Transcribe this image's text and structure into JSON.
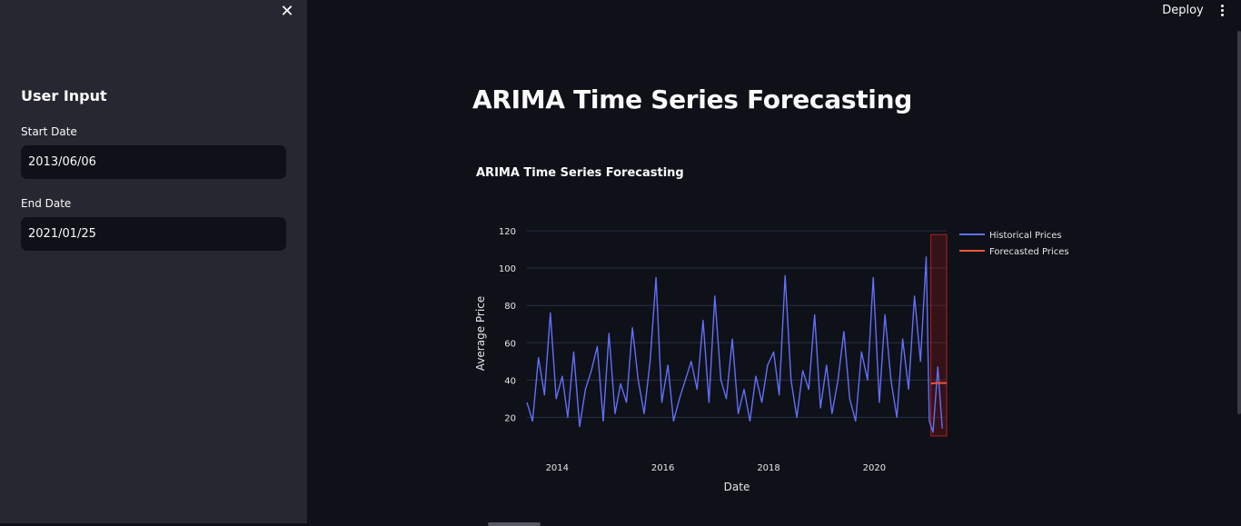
{
  "sidebar": {
    "close_icon": "close-icon",
    "title": "User Input",
    "start_date": {
      "label": "Start Date",
      "value": "2013/06/06"
    },
    "end_date": {
      "label": "End Date",
      "value": "2021/01/25"
    }
  },
  "header": {
    "deploy_label": "Deploy",
    "menu_icon": "kebab-menu-icon"
  },
  "main": {
    "title": "ARIMA Time Series Forecasting"
  },
  "colors": {
    "background": "#0e1117",
    "sidebar": "#262730",
    "historical": "#636efa",
    "forecast": "#ef553b",
    "forecast_region": "#8b1a1a"
  },
  "chart_data": {
    "type": "line",
    "title": "ARIMA Time Series Forecasting",
    "xlabel": "Date",
    "ylabel": "Average Price",
    "xlim": [
      "2013-06-06",
      "2021-05-15"
    ],
    "ylim": [
      8,
      122
    ],
    "x_ticks": [
      "2014",
      "2016",
      "2018",
      "2020"
    ],
    "y_ticks": [
      20,
      40,
      60,
      80,
      100,
      120
    ],
    "grid": true,
    "legend_position": "top-right",
    "series": [
      {
        "name": "Historical Prices",
        "x": [
          "2013-06-06",
          "2013-07-15",
          "2013-08-25",
          "2013-10-05",
          "2013-11-15",
          "2013-12-25",
          "2014-02-05",
          "2014-03-15",
          "2014-04-25",
          "2014-06-05",
          "2014-07-15",
          "2014-08-25",
          "2014-10-05",
          "2014-11-15",
          "2014-12-25",
          "2015-02-05",
          "2015-03-15",
          "2015-04-25",
          "2015-06-05",
          "2015-07-15",
          "2015-08-25",
          "2015-10-05",
          "2015-11-15",
          "2015-12-25",
          "2016-02-05",
          "2016-03-15",
          "2016-04-25",
          "2016-06-05",
          "2016-07-15",
          "2016-08-25",
          "2016-10-05",
          "2016-11-15",
          "2016-12-25",
          "2017-02-05",
          "2017-03-15",
          "2017-04-25",
          "2017-06-05",
          "2017-07-15",
          "2017-08-25",
          "2017-10-05",
          "2017-11-15",
          "2017-12-25",
          "2018-02-05",
          "2018-03-15",
          "2018-04-25",
          "2018-06-05",
          "2018-07-15",
          "2018-08-25",
          "2018-10-05",
          "2018-11-15",
          "2018-12-25",
          "2019-02-05",
          "2019-03-15",
          "2019-04-25",
          "2019-06-05",
          "2019-07-15",
          "2019-08-25",
          "2019-10-05",
          "2019-11-15",
          "2019-12-25",
          "2020-02-05",
          "2020-03-15",
          "2020-04-25",
          "2020-06-05",
          "2020-07-15",
          "2020-08-25",
          "2020-10-05",
          "2020-11-15",
          "2020-12-25",
          "2021-01-15",
          "2021-02-10",
          "2021-03-15",
          "2021-04-15"
        ],
        "values": [
          28,
          18,
          52,
          32,
          76,
          30,
          42,
          20,
          55,
          15,
          35,
          45,
          58,
          18,
          65,
          22,
          38,
          28,
          68,
          40,
          22,
          50,
          95,
          28,
          48,
          18,
          30,
          40,
          50,
          35,
          72,
          28,
          85,
          40,
          30,
          62,
          22,
          35,
          18,
          42,
          28,
          48,
          55,
          32,
          96,
          40,
          20,
          45,
          35,
          75,
          25,
          48,
          22,
          40,
          66,
          30,
          18,
          55,
          40,
          95,
          28,
          75,
          40,
          20,
          62,
          35,
          85,
          50,
          106,
          18,
          12,
          47,
          14
        ]
      },
      {
        "name": "Forecasted Prices",
        "x": [
          "2021-01-26",
          "2021-02-15",
          "2021-03-15",
          "2021-04-15",
          "2021-05-15"
        ],
        "values": [
          38,
          38.3,
          38.4,
          38.4,
          38.4
        ]
      }
    ],
    "forecast_region": {
      "x_start": "2021-01-26",
      "x_end": "2021-05-15"
    }
  }
}
